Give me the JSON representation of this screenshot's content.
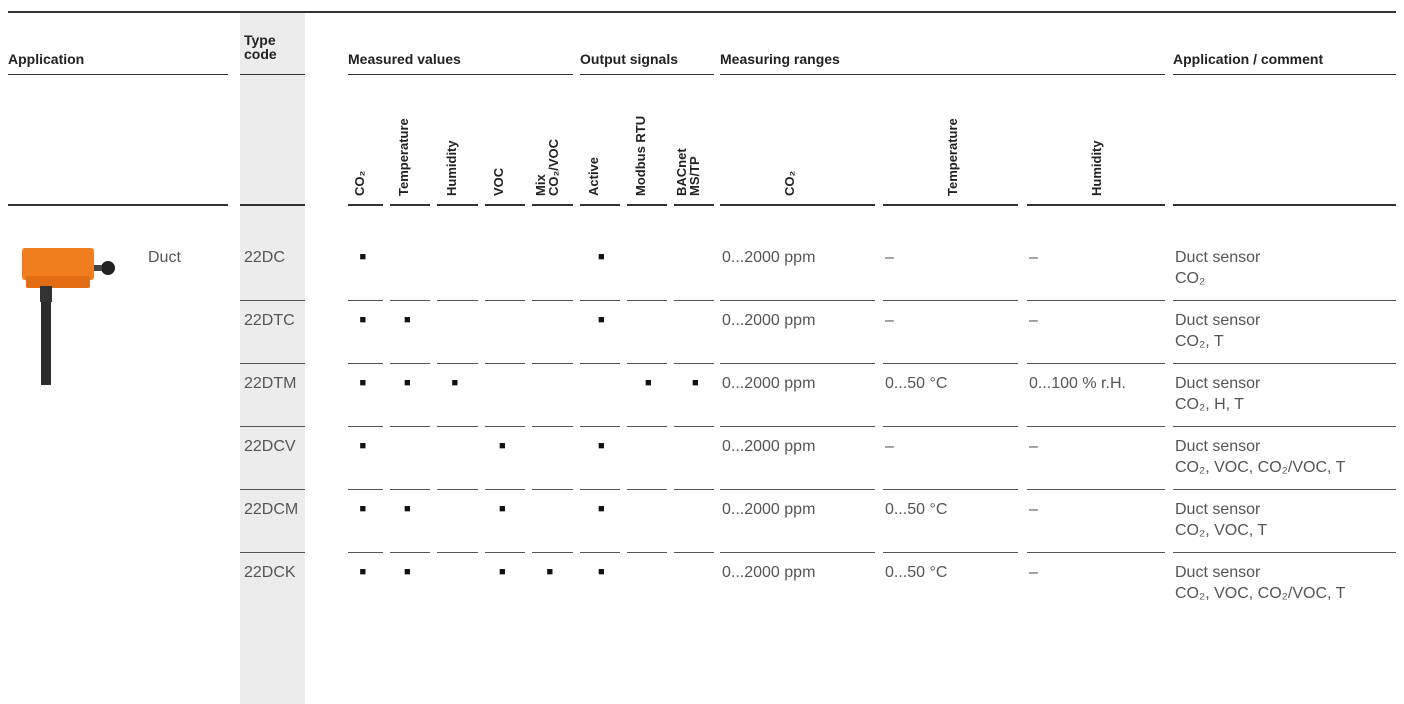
{
  "header": {
    "groups": [
      "Application",
      "Type code",
      "Measured values",
      "Output signals",
      "Measuring ranges",
      "Application /  comment"
    ],
    "sub_headers": [
      [
        "CO₂"
      ],
      [
        "Temperature"
      ],
      [
        "Humidity"
      ],
      [
        "VOC"
      ],
      [
        "Mix",
        "CO₂/VOC"
      ],
      [
        "Active"
      ],
      [
        "Modbus RTU"
      ],
      [
        "BACnet",
        "MS/TP"
      ],
      [
        "CO₂"
      ],
      [
        "Temperature"
      ],
      [
        "Humidity"
      ]
    ]
  },
  "application": "Duct",
  "rows": [
    {
      "type_code": "22DC",
      "flags": [
        "■",
        null,
        null,
        null,
        null,
        "■",
        null,
        null
      ],
      "ranges": [
        "0...2000 ppm",
        "–",
        "–"
      ],
      "comment": [
        "Duct sensor",
        "CO₂"
      ]
    },
    {
      "type_code": "22DTC",
      "flags": [
        "■",
        "■",
        null,
        null,
        null,
        "■",
        null,
        null
      ],
      "ranges": [
        "0...2000 ppm",
        "–",
        "–"
      ],
      "comment": [
        "Duct sensor",
        "CO₂, T"
      ]
    },
    {
      "type_code": "22DTM",
      "flags": [
        "■",
        "■",
        "■",
        null,
        null,
        null,
        "■",
        "■"
      ],
      "ranges": [
        "0...2000 ppm",
        "0...50 °C",
        "0...100 % r.H."
      ],
      "comment": [
        "Duct sensor",
        "CO₂, H, T"
      ]
    },
    {
      "type_code": "22DCV",
      "flags": [
        "■",
        null,
        null,
        "■",
        null,
        "■",
        null,
        null
      ],
      "ranges": [
        "0...2000 ppm",
        "–",
        "–"
      ],
      "comment": [
        "Duct sensor",
        "CO₂, VOC, CO₂/VOC, T"
      ]
    },
    {
      "type_code": "22DCM",
      "flags": [
        "■",
        "■",
        null,
        "■",
        null,
        "■",
        null,
        null
      ],
      "ranges": [
        "0...2000 ppm",
        "0...50 °C",
        "–"
      ],
      "comment": [
        "Duct sensor",
        "CO₂, VOC, T"
      ]
    },
    {
      "type_code": "22DCK",
      "flags": [
        "■",
        "■",
        null,
        "■",
        "■",
        "■",
        null,
        null
      ],
      "ranges": [
        "0...2000 ppm",
        "0...50 °C",
        "–"
      ],
      "comment": [
        "Duct sensor",
        "CO₂, VOC, CO₂/VOC, T"
      ]
    }
  ]
}
